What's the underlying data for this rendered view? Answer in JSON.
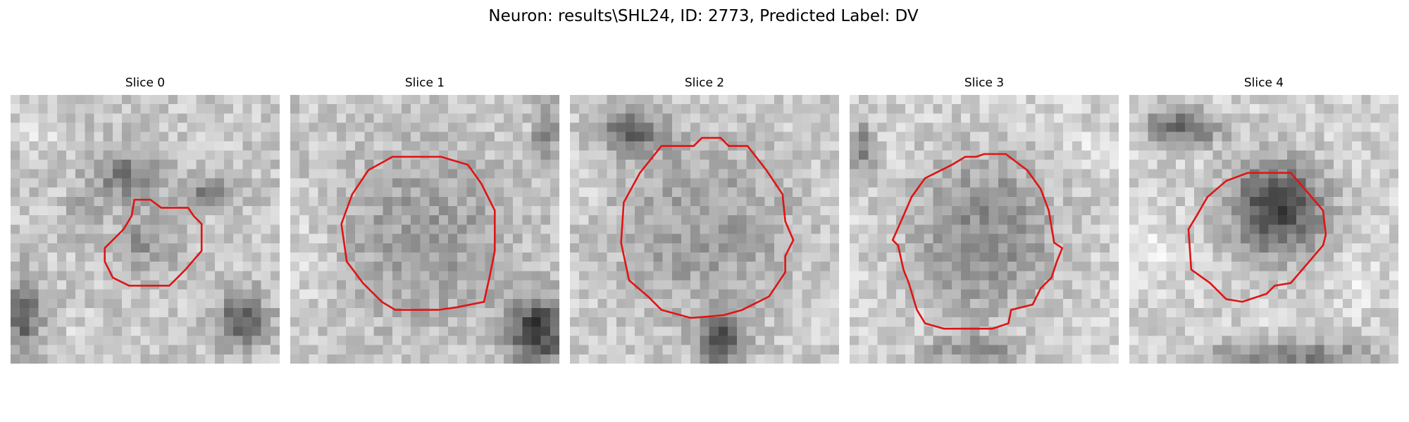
{
  "figure": {
    "title": "Neuron: results\\SHL24, ID: 2773, Predicted Label: DV",
    "contour_color": "#e01414"
  },
  "slices": [
    {
      "title": "Slice 0"
    },
    {
      "title": "Slice 1"
    },
    {
      "title": "Slice 2"
    },
    {
      "title": "Slice 3"
    },
    {
      "title": "Slice 4"
    }
  ]
}
